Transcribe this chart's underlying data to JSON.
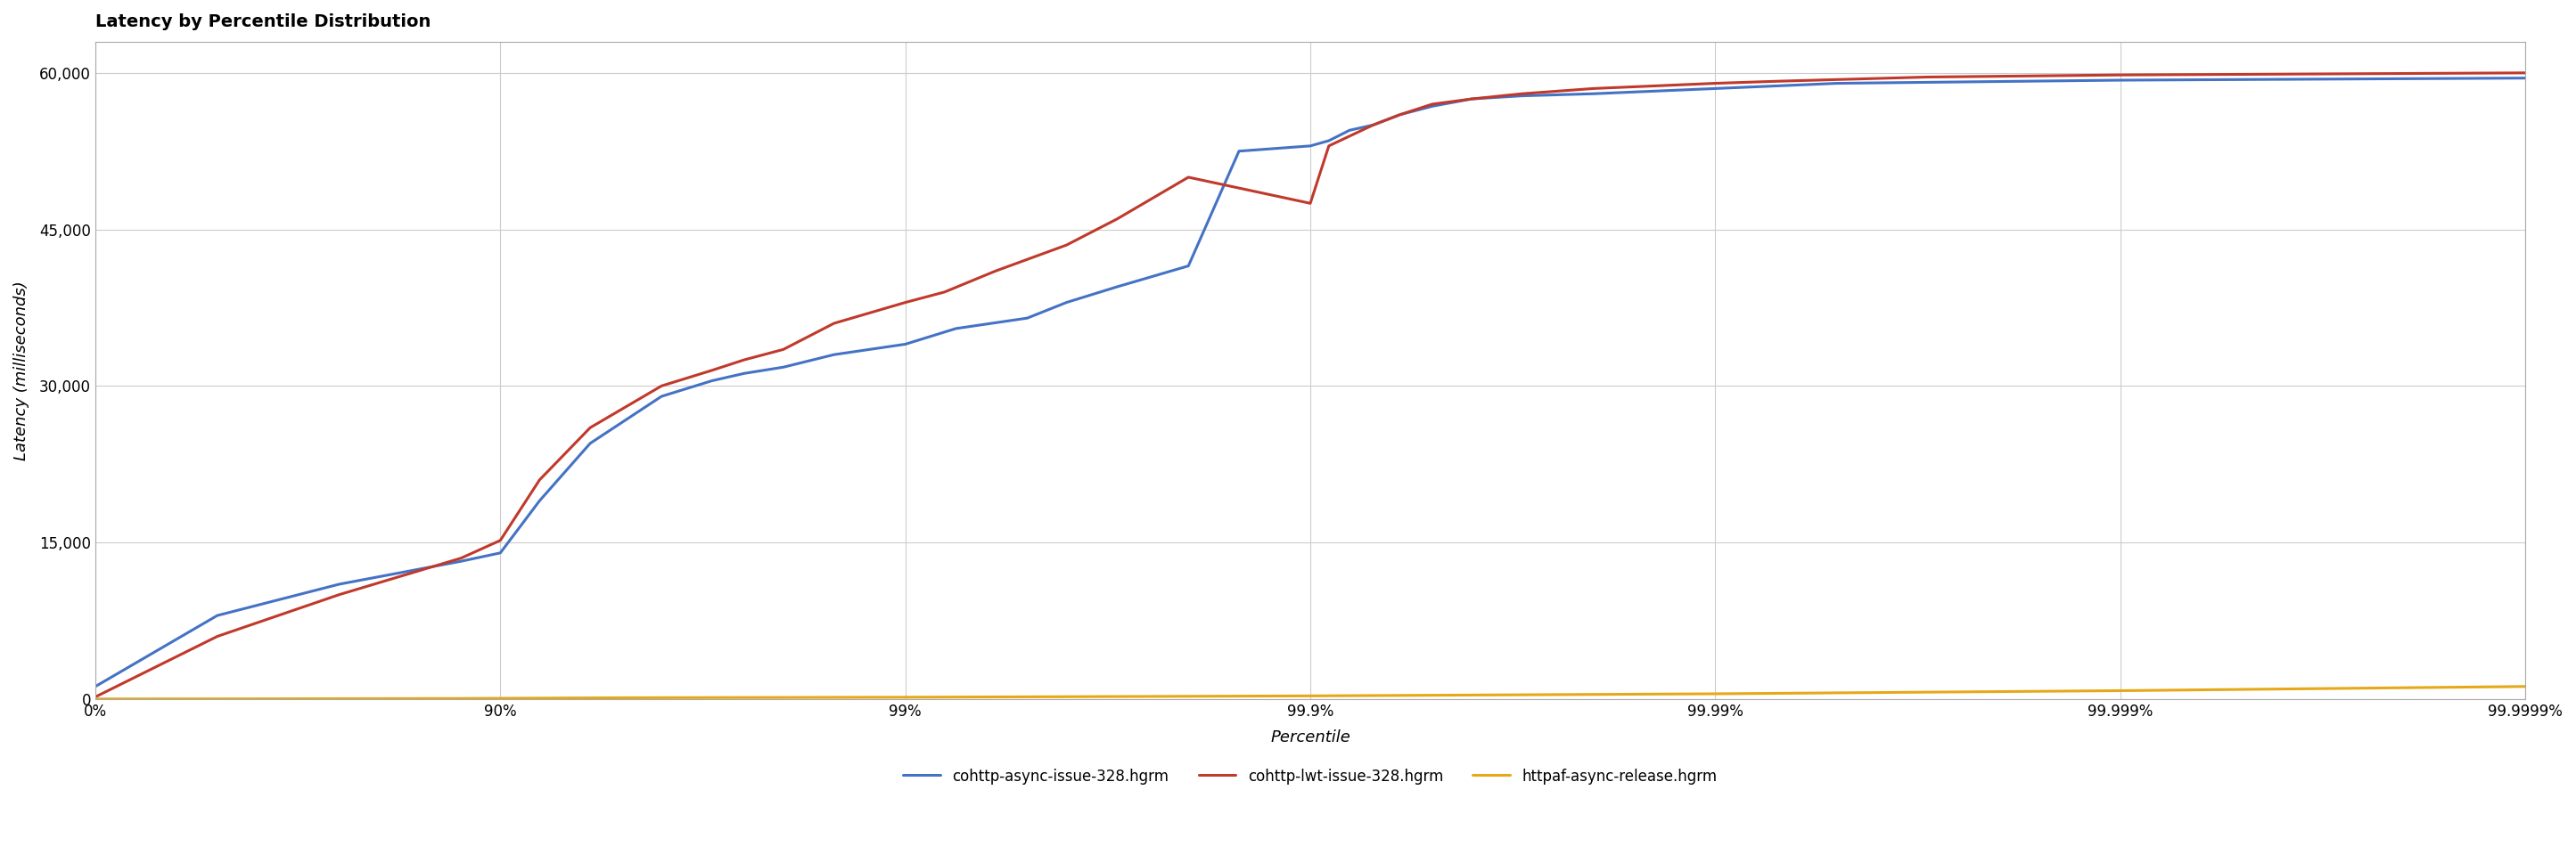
{
  "title": "Latency by Percentile Distribution",
  "xlabel": "Percentile",
  "ylabel": "Latency (milliseconds)",
  "background_color": "#ffffff",
  "grid_color": "#cccccc",
  "ylim": [
    0,
    63000
  ],
  "yticks": [
    0,
    15000,
    30000,
    45000,
    60000
  ],
  "ytick_labels": [
    "0",
    "15,000",
    "30,000",
    "45,000",
    "60,000"
  ],
  "xtick_labels": [
    "0%",
    "90%",
    "99%",
    "99.9%",
    "99.99%",
    "99.999%",
    "99.9999%"
  ],
  "xtick_percentiles": [
    0.0,
    0.9,
    0.99,
    0.999,
    0.9999,
    0.99999,
    0.999999
  ],
  "series": [
    {
      "label": "cohttp-async-issue-328.hgrm",
      "color": "#4472c4",
      "linewidth": 2.2,
      "p": [
        0.0,
        0.5,
        0.75,
        0.875,
        0.9,
        0.92,
        0.94,
        0.96,
        0.97,
        0.975,
        0.98,
        0.985,
        0.99,
        0.9925,
        0.995,
        0.996,
        0.997,
        0.998,
        0.9985,
        0.999,
        0.9991,
        0.9992,
        0.9993,
        0.9994,
        0.9995,
        0.9996,
        0.9997,
        0.9998,
        0.9999,
        0.99995,
        0.99999,
        0.999999
      ],
      "y": [
        1200,
        8000,
        11000,
        13200,
        14000,
        19000,
        24500,
        29000,
        30500,
        31200,
        31800,
        33000,
        34000,
        35500,
        36500,
        38000,
        39500,
        41500,
        52500,
        53000,
        53500,
        54500,
        55000,
        56000,
        56800,
        57500,
        57800,
        58000,
        58500,
        59000,
        59300,
        59500
      ]
    },
    {
      "label": "cohttp-lwt-issue-328.hgrm",
      "color": "#c0392b",
      "linewidth": 2.2,
      "p": [
        0.0,
        0.5,
        0.75,
        0.875,
        0.9,
        0.92,
        0.94,
        0.96,
        0.97,
        0.975,
        0.98,
        0.985,
        0.99,
        0.992,
        0.994,
        0.996,
        0.997,
        0.998,
        0.999,
        0.9991,
        0.9993,
        0.9994,
        0.9995,
        0.9996,
        0.9997,
        0.9998,
        0.9999,
        0.99993,
        0.99997,
        0.99999,
        0.999999
      ],
      "y": [
        200,
        6000,
        10000,
        13500,
        15200,
        21000,
        26000,
        30000,
        31500,
        32500,
        33500,
        36000,
        38000,
        39000,
        41000,
        43500,
        46000,
        50000,
        47500,
        53000,
        55000,
        56000,
        57000,
        57500,
        58000,
        58500,
        59000,
        59200,
        59600,
        59800,
        60000
      ]
    },
    {
      "label": "httpaf-async-release.hgrm",
      "color": "#e6a817",
      "linewidth": 2.2,
      "p": [
        0.0,
        0.5,
        0.75,
        0.875,
        0.9,
        0.95,
        0.99,
        0.999,
        0.9999,
        0.99999,
        0.999999
      ],
      "y": [
        5,
        15,
        30,
        50,
        70,
        120,
        170,
        300,
        500,
        800,
        1200
      ]
    }
  ],
  "title_fontsize": 14,
  "label_fontsize": 13,
  "tick_fontsize": 12,
  "legend_fontsize": 12
}
